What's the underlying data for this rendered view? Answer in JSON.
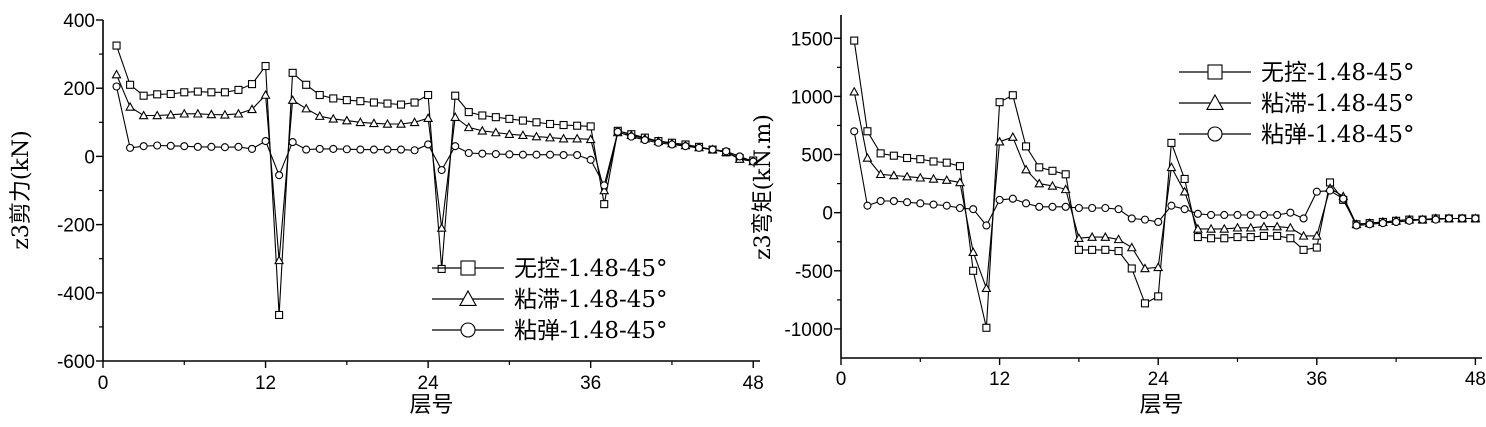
{
  "chart_data": [
    {
      "type": "line",
      "xlabel": "层号",
      "ylabel": "z3剪力(kN)",
      "xlim": [
        0,
        48.5
      ],
      "ylim": [
        -600,
        400
      ],
      "xticks": [
        "0",
        "12",
        "24",
        "36",
        "48"
      ],
      "xtick_values": [
        0,
        12,
        24,
        36,
        48
      ],
      "yticks": [
        "400",
        "200",
        "0",
        "-200",
        "-400",
        "-600"
      ],
      "ytick_values": [
        400,
        200,
        0,
        -200,
        -400,
        -600
      ],
      "legend_position": "bottom-right",
      "x": [
        1,
        2,
        3,
        4,
        5,
        6,
        7,
        8,
        9,
        10,
        11,
        12,
        13,
        14,
        15,
        16,
        17,
        18,
        19,
        20,
        21,
        22,
        23,
        24,
        25,
        26,
        27,
        28,
        29,
        30,
        31,
        32,
        33,
        34,
        35,
        36,
        37,
        38,
        39,
        40,
        41,
        42,
        43,
        44,
        45,
        46,
        47,
        48
      ],
      "series": [
        {
          "name": "无控-1.48-45°",
          "marker": "square",
          "values": [
            325,
            210,
            178,
            182,
            183,
            188,
            190,
            188,
            188,
            195,
            212,
            265,
            -465,
            245,
            210,
            180,
            170,
            165,
            162,
            158,
            155,
            152,
            158,
            180,
            -330,
            178,
            130,
            120,
            115,
            110,
            105,
            100,
            95,
            92,
            90,
            88,
            -140,
            75,
            65,
            55,
            45,
            40,
            35,
            28,
            20,
            12,
            -5,
            -12
          ]
        },
        {
          "name": "粘滞-1.48-45°",
          "marker": "triangle",
          "values": [
            240,
            145,
            120,
            120,
            122,
            125,
            125,
            123,
            122,
            125,
            138,
            180,
            -305,
            165,
            140,
            118,
            110,
            105,
            100,
            97,
            95,
            95,
            100,
            112,
            -210,
            115,
            85,
            75,
            70,
            65,
            62,
            58,
            55,
            52,
            52,
            50,
            -100,
            70,
            62,
            52,
            44,
            38,
            32,
            26,
            20,
            12,
            -8,
            -15
          ]
        },
        {
          "name": "粘弹-1.48-45°",
          "marker": "circle",
          "values": [
            205,
            25,
            30,
            32,
            31,
            30,
            28,
            28,
            27,
            28,
            22,
            45,
            -55,
            42,
            20,
            22,
            22,
            21,
            20,
            20,
            20,
            20,
            18,
            35,
            -40,
            30,
            10,
            8,
            7,
            6,
            5,
            5,
            5,
            4,
            4,
            -10,
            -85,
            72,
            58,
            48,
            40,
            35,
            30,
            25,
            20,
            15,
            0,
            -15
          ]
        }
      ]
    },
    {
      "type": "line",
      "xlabel": "层号",
      "ylabel": "z3弯矩(kN.m)",
      "xlim": [
        0,
        48.5
      ],
      "ylim": [
        -1250,
        1700
      ],
      "xticks": [
        "0",
        "12",
        "24",
        "36",
        "48"
      ],
      "xtick_values": [
        0,
        12,
        24,
        36,
        48
      ],
      "yticks": [
        "1500",
        "1000",
        "500",
        "0",
        "-500",
        "-1000"
      ],
      "ytick_values": [
        1500,
        1000,
        500,
        0,
        -500,
        -1000
      ],
      "legend_position": "top-right",
      "x": [
        1,
        2,
        3,
        4,
        5,
        6,
        7,
        8,
        9,
        10,
        11,
        12,
        13,
        14,
        15,
        16,
        17,
        18,
        19,
        20,
        21,
        22,
        23,
        24,
        25,
        26,
        27,
        28,
        29,
        30,
        31,
        32,
        33,
        34,
        35,
        36,
        37,
        38,
        39,
        40,
        41,
        42,
        43,
        44,
        45,
        46,
        47,
        48
      ],
      "series": [
        {
          "name": "无控-1.48-45°",
          "marker": "square",
          "values": [
            1480,
            700,
            510,
            490,
            470,
            460,
            440,
            430,
            400,
            -500,
            -990,
            950,
            1010,
            570,
            390,
            360,
            330,
            -320,
            -320,
            -320,
            -330,
            -480,
            -780,
            -720,
            600,
            290,
            -210,
            -220,
            -220,
            -210,
            -210,
            -200,
            -200,
            -220,
            -320,
            -300,
            260,
            110,
            -100,
            -90,
            -80,
            -70,
            -60,
            -60,
            -50,
            -50,
            -50,
            -50
          ]
        },
        {
          "name": "粘滞-1.48-45°",
          "marker": "triangle",
          "values": [
            1040,
            470,
            330,
            320,
            310,
            300,
            290,
            280,
            260,
            -340,
            -650,
            610,
            650,
            370,
            250,
            230,
            200,
            -220,
            -210,
            -210,
            -230,
            -300,
            -480,
            -470,
            390,
            180,
            -140,
            -140,
            -140,
            -130,
            -130,
            -120,
            -120,
            -130,
            -200,
            -200,
            210,
            140,
            -100,
            -90,
            -80,
            -70,
            -60,
            -60,
            -50,
            -50,
            -50,
            -50
          ]
        },
        {
          "name": "粘弹-1.48-45°",
          "marker": "circle",
          "values": [
            700,
            60,
            100,
            100,
            90,
            80,
            70,
            60,
            40,
            30,
            -110,
            110,
            120,
            80,
            50,
            50,
            50,
            40,
            40,
            40,
            30,
            -50,
            -60,
            -80,
            60,
            30,
            -10,
            -20,
            -20,
            -20,
            -20,
            -20,
            -20,
            0,
            -50,
            180,
            190,
            120,
            -110,
            -100,
            -90,
            -80,
            -70,
            -60,
            -60,
            -50,
            -50,
            -50
          ]
        }
      ]
    }
  ]
}
